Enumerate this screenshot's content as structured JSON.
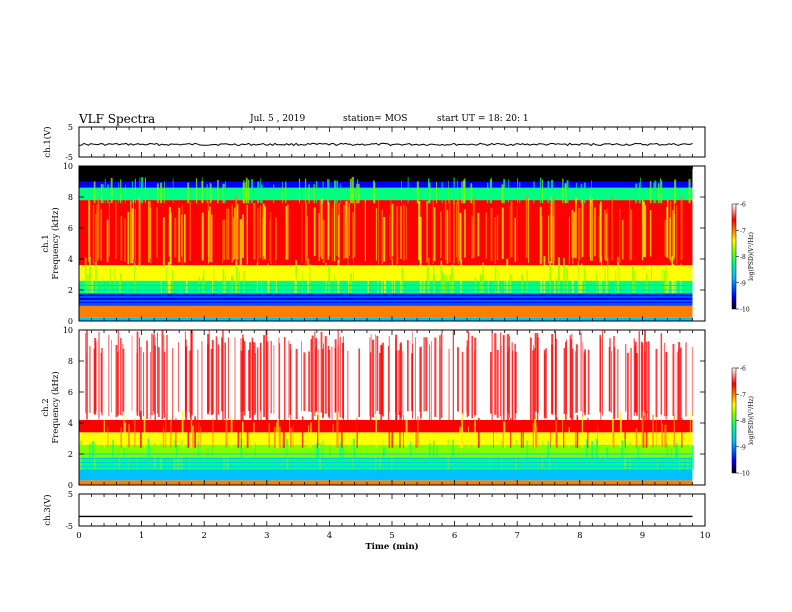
{
  "header": {
    "title": "VLF Spectra",
    "date": "Jul. 5 , 2019",
    "station": "station= MOS",
    "start": "start UT =  18: 20: 1"
  },
  "chart_data": [
    {
      "type": "line",
      "id": "ch1_waveform",
      "ylabel": "ch.1(V)",
      "ylim": [
        -5,
        5
      ],
      "yticks": [
        5,
        -5
      ],
      "xlim": [
        0,
        10
      ],
      "series": [
        {
          "x": [
            0,
            9.8
          ],
          "y": [
            -0.8,
            -0.8
          ]
        }
      ]
    },
    {
      "type": "heatmap",
      "id": "ch1_spectrogram",
      "ylabel": "ch.1 Frequency (kHz)",
      "ylabel_line1": "ch.1",
      "ylabel_line2": "Frequency (kHz)",
      "ylim": [
        0,
        10
      ],
      "yticks": [
        0,
        2,
        4,
        6,
        8,
        10
      ],
      "xlim": [
        0,
        10
      ],
      "data_extent_min": [
        0,
        9.8
      ],
      "colorbar": {
        "label": "log(PSD)(V²/Hz)",
        "range": [
          -10,
          -6
        ],
        "ticks": [
          -6,
          -7,
          -8,
          -9,
          -10
        ]
      }
    },
    {
      "type": "heatmap",
      "id": "ch2_spectrogram",
      "ylabel": "ch.2 Frequency (kHz)",
      "ylabel_line1": "ch.2",
      "ylabel_line2": "Frequency (kHz)",
      "ylim": [
        0,
        10
      ],
      "yticks": [
        0,
        2,
        4,
        6,
        8,
        10
      ],
      "xlim": [
        0,
        10
      ],
      "data_extent_min": [
        0,
        9.8
      ],
      "colorbar": {
        "label": "log(PSD)(V²/Hz)",
        "range": [
          -10,
          -6
        ],
        "ticks": [
          -6,
          -7,
          -8,
          -9,
          -10
        ]
      }
    },
    {
      "type": "line",
      "id": "ch3_waveform",
      "ylabel": "ch.3(V)",
      "ylim": [
        -5,
        5
      ],
      "yticks": [
        5,
        -5
      ],
      "xlim": [
        0,
        10
      ],
      "xticks": [
        0,
        1,
        2,
        3,
        4,
        5,
        6,
        7,
        8,
        9,
        10
      ],
      "xlabel": "Time (min)",
      "series": [
        {
          "x": [
            0,
            9.8
          ],
          "y": [
            -2,
            -2
          ]
        }
      ]
    }
  ],
  "colors": {
    "colormap": [
      "#000000",
      "#0000ff",
      "#00c0ff",
      "#00ff80",
      "#80ff00",
      "#ffff00",
      "#ff8000",
      "#ff0000",
      "#ffffff"
    ],
    "axis": "#000000"
  }
}
